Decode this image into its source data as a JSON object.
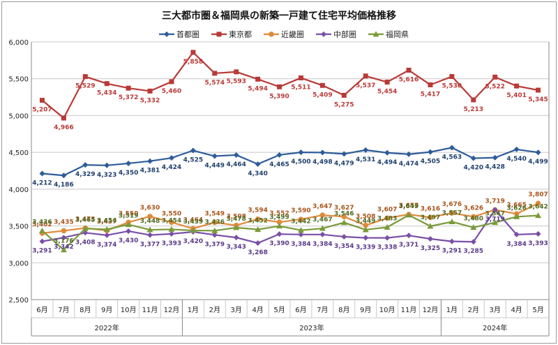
{
  "chart_data": {
    "type": "line",
    "title": "三大都市圏＆福岡県の新築一戸建て住宅平均価格推移",
    "xlabel": "",
    "ylabel": "",
    "ylim": [
      2500,
      6000
    ],
    "yticks": [
      "2,500",
      "3,000",
      "3,500",
      "4,000",
      "4,500",
      "5,000",
      "5,500",
      "6,000"
    ],
    "grid": true,
    "legend_position": "top",
    "categories": [
      "6月",
      "7月",
      "8月",
      "9月",
      "10月",
      "11月",
      "12月",
      "1月",
      "2月",
      "3月",
      "4月",
      "5月",
      "6月",
      "7月",
      "8月",
      "9月",
      "10月",
      "11月",
      "12月",
      "1月",
      "2月",
      "3月",
      "4月",
      "5月"
    ],
    "year_groups": [
      {
        "label": "2022年",
        "count": 7
      },
      {
        "label": "2023年",
        "count": 12
      },
      {
        "label": "2024年",
        "count": 5
      }
    ],
    "series": [
      {
        "name": "首都圏",
        "color": "#2e5c9a",
        "marker": "diamond",
        "values": [
          4212,
          4186,
          4329,
          4323,
          4350,
          4381,
          4424,
          4525,
          4449,
          4464,
          4340,
          4465,
          4500,
          4498,
          4479,
          4531,
          4494,
          4474,
          4505,
          4563,
          4420,
          4428,
          4540,
          4499
        ],
        "labels": [
          "4,212",
          "4,186",
          "4,329",
          "4,323",
          "4,350",
          "4,381",
          "4,424",
          "4,525",
          "4,449",
          "4,464",
          "4,340",
          "4,465",
          "4,500",
          "4,498",
          "4,479",
          "4,531",
          "4,494",
          "4,474",
          "4,505",
          "4,563",
          "4,420",
          "4,428",
          "4,540",
          "4,499"
        ]
      },
      {
        "name": "東京都",
        "color": "#b83a37",
        "marker": "square",
        "values": [
          5207,
          4966,
          5529,
          5434,
          5372,
          5332,
          5460,
          5858,
          5574,
          5593,
          5494,
          5390,
          5511,
          5409,
          5275,
          5537,
          5454,
          5616,
          5417,
          5530,
          5213,
          5522,
          5401,
          5345
        ],
        "labels": [
          "5,207",
          "4,966",
          "5,529",
          "5,434",
          "5,372",
          "5,332",
          "5,460",
          "5,858",
          "5,574",
          "5,593",
          "5,494",
          "5,390",
          "5,511",
          "5,409",
          "5,275",
          "5,537",
          "5,454",
          "5,616",
          "5,417",
          "5,530",
          "5,213",
          "5,522",
          "5,401",
          "5,345"
        ]
      },
      {
        "name": "近畿圏",
        "color": "#e08a3c",
        "marker": "circle",
        "values": [
          3402,
          3435,
          3473,
          3437,
          3550,
          3630,
          3550,
          3464,
          3549,
          3508,
          3594,
          3552,
          3590,
          3647,
          3627,
          3508,
          3607,
          3657,
          3616,
          3676,
          3626,
          3719,
          3665,
          3807
        ],
        "labels": [
          "3,402",
          "3,435",
          "3,473",
          "3,437",
          "3,550",
          "3,630",
          "3,550",
          "3,464",
          "3,549",
          "3,508",
          "3,594",
          "3,552",
          "3,590",
          "3,647",
          "3,627",
          "3,508",
          "3,607",
          "3,657",
          "3,616",
          "3,676",
          "3,626",
          "3,719",
          "3,665",
          "3,807"
        ]
      },
      {
        "name": "中部圏",
        "color": "#7a4fa8",
        "marker": "diamond",
        "values": [
          3291,
          3342,
          3408,
          3374,
          3430,
          3377,
          3393,
          3420,
          3379,
          3343,
          3268,
          3390,
          3384,
          3384,
          3354,
          3339,
          3338,
          3371,
          3325,
          3291,
          3285,
          3719,
          3384,
          3393
        ],
        "labels": [
          "3,291",
          "3,342",
          "3,408",
          "3,374",
          "3,430",
          "3,377",
          "3,393",
          "3,420",
          "3,379",
          "3,343",
          "3,268",
          "3,390",
          "3,384",
          "3,384",
          "3,354",
          "3,339",
          "3,338",
          "3,371",
          "3,325",
          "3,291",
          "3,285",
          "3,719",
          "3,384",
          "3,393"
        ]
      },
      {
        "name": "福岡県",
        "color": "#7a9a3a",
        "marker": "triangle",
        "values": [
          3436,
          3176,
          3465,
          3454,
          3519,
          3448,
          3454,
          3439,
          3436,
          3478,
          3452,
          3499,
          3442,
          3467,
          3546,
          3449,
          3483,
          3649,
          3497,
          3557,
          3480,
          3547,
          3626,
          3642
        ],
        "labels": [
          "3,436",
          "3,176",
          "3,465",
          "3,454",
          "3,519",
          "3,448",
          "3,454",
          "3,439",
          "3,436",
          "3,478",
          "3,452",
          "3,499",
          "3,442",
          "3,467",
          "3,546",
          "3,449",
          "3,483",
          "3,649",
          "3,497",
          "3,557",
          "3,480",
          "3,547",
          "3,626",
          "3,642"
        ]
      }
    ]
  }
}
